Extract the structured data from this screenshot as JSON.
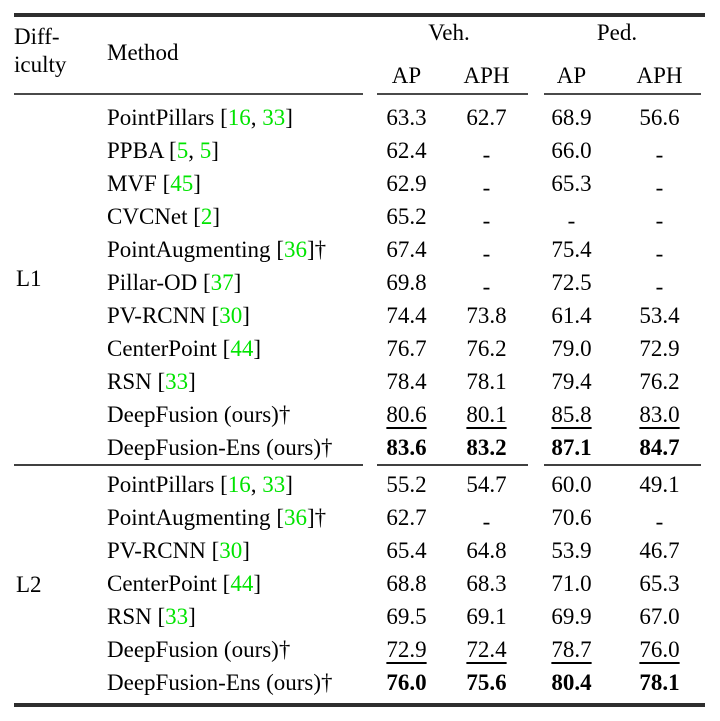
{
  "colors": {
    "citation_green": "#00E400",
    "rule_heavy": "#2E2E2E",
    "rule_light": "#4A4A4A",
    "text": "#000000",
    "background": "#FFFFFF"
  },
  "header": {
    "difficulty_line1": "Diff-",
    "difficulty_line2": "iculty",
    "method": "Method",
    "groups": [
      {
        "label": "Veh."
      },
      {
        "label": "Ped."
      }
    ],
    "subcols": [
      "AP",
      "APH",
      "AP",
      "APH"
    ]
  },
  "sections": [
    {
      "difficulty": "L1",
      "rows": [
        {
          "method": "PointPillars",
          "cites": [
            "16",
            "33"
          ],
          "after": "",
          "values": [
            "63.3",
            "62.7",
            "68.9",
            "56.6"
          ],
          "style": "normal"
        },
        {
          "method": "PPBA",
          "cites": [
            "5",
            "5"
          ],
          "after": "",
          "values": [
            "62.4",
            "-",
            "66.0",
            "-"
          ],
          "style": "normal"
        },
        {
          "method": "MVF",
          "cites": [
            "45"
          ],
          "after": "",
          "values": [
            "62.9",
            "-",
            "65.3",
            "-"
          ],
          "style": "normal"
        },
        {
          "method": "CVCNet",
          "cites": [
            "2"
          ],
          "after": "",
          "values": [
            "65.2",
            "-",
            "-",
            "-"
          ],
          "style": "normal"
        },
        {
          "method": "PointAugmenting",
          "cites": [
            "36"
          ],
          "after": "†",
          "values": [
            "67.4",
            "-",
            "75.4",
            "-"
          ],
          "style": "normal"
        },
        {
          "method": "Pillar-OD",
          "cites": [
            "37"
          ],
          "after": "",
          "values": [
            "69.8",
            "-",
            "72.5",
            "-"
          ],
          "style": "normal"
        },
        {
          "method": "PV-RCNN",
          "cites": [
            "30"
          ],
          "after": "",
          "values": [
            "74.4",
            "73.8",
            "61.4",
            "53.4"
          ],
          "style": "normal"
        },
        {
          "method": "CenterPoint",
          "cites": [
            "44"
          ],
          "after": "",
          "values": [
            "76.7",
            "76.2",
            "79.0",
            "72.9"
          ],
          "style": "normal"
        },
        {
          "method": "RSN",
          "cites": [
            "33"
          ],
          "after": "",
          "values": [
            "78.4",
            "78.1",
            "79.4",
            "76.2"
          ],
          "style": "normal"
        },
        {
          "method": "DeepFusion (ours)",
          "cites": [],
          "after": "†",
          "values": [
            "80.6",
            "80.1",
            "85.8",
            "83.0"
          ],
          "style": "underline"
        },
        {
          "method": "DeepFusion-Ens (ours)",
          "cites": [],
          "after": "†",
          "values": [
            "83.6",
            "83.2",
            "87.1",
            "84.7"
          ],
          "style": "bold"
        }
      ]
    },
    {
      "difficulty": "L2",
      "rows": [
        {
          "method": "PointPillars",
          "cites": [
            "16",
            "33"
          ],
          "after": "",
          "values": [
            "55.2",
            "54.7",
            "60.0",
            "49.1"
          ],
          "style": "normal"
        },
        {
          "method": "PointAugmenting",
          "cites": [
            "36"
          ],
          "after": "†",
          "values": [
            "62.7",
            "-",
            "70.6",
            "-"
          ],
          "style": "normal"
        },
        {
          "method": "PV-RCNN",
          "cites": [
            "30"
          ],
          "after": "",
          "values": [
            "65.4",
            "64.8",
            "53.9",
            "46.7"
          ],
          "style": "normal"
        },
        {
          "method": "CenterPoint",
          "cites": [
            "44"
          ],
          "after": "",
          "values": [
            "68.8",
            "68.3",
            "71.0",
            "65.3"
          ],
          "style": "normal"
        },
        {
          "method": "RSN",
          "cites": [
            "33"
          ],
          "after": "",
          "values": [
            "69.5",
            "69.1",
            "69.9",
            "67.0"
          ],
          "style": "normal"
        },
        {
          "method": "DeepFusion (ours)",
          "cites": [],
          "after": "†",
          "values": [
            "72.9",
            "72.4",
            "78.7",
            "76.0"
          ],
          "style": "underline"
        },
        {
          "method": "DeepFusion-Ens (ours)",
          "cites": [],
          "after": "†",
          "values": [
            "76.0",
            "75.6",
            "80.4",
            "78.1"
          ],
          "style": "bold"
        }
      ]
    }
  ]
}
